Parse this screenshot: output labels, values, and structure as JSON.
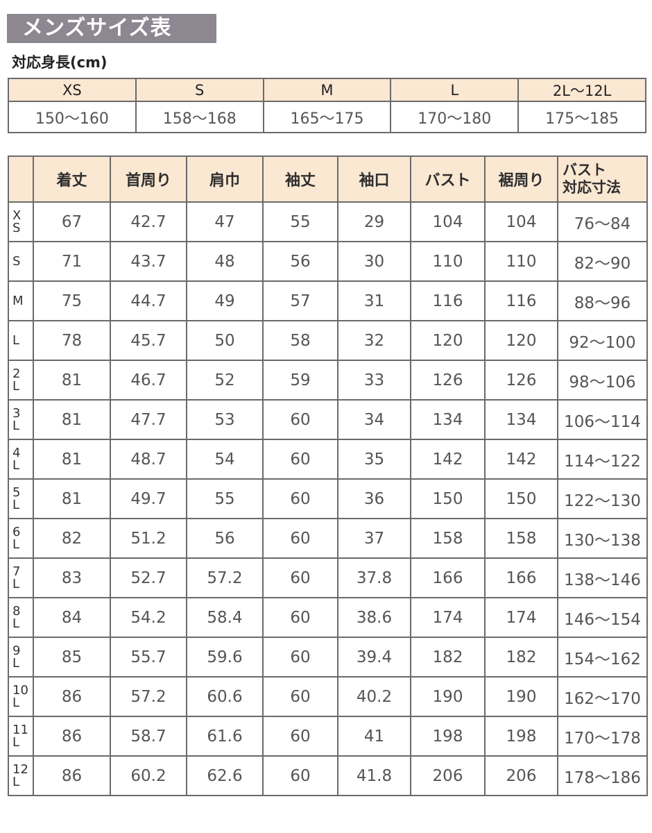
{
  "title": "メンズサイズ表",
  "height_section": {
    "label": "対応身長(cm)",
    "sizes": [
      "XS",
      "S",
      "M",
      "L",
      "2L〜12L"
    ],
    "heights": [
      "150〜160",
      "158〜168",
      "165〜175",
      "170〜180",
      "175〜185"
    ]
  },
  "size_table": {
    "headers": [
      "",
      "着丈",
      "首周り",
      "肩巾",
      "袖丈",
      "袖口",
      "バスト",
      "裾周り",
      "バスト\n対応寸法"
    ],
    "header_last_line1": "バスト",
    "header_last_line2": "対応寸法",
    "rows": [
      [
        "XS",
        "67",
        "42.7",
        "47",
        "55",
        "29",
        "104",
        "104",
        "76〜84"
      ],
      [
        "S",
        "71",
        "43.7",
        "48",
        "56",
        "30",
        "110",
        "110",
        "82〜90"
      ],
      [
        "M",
        "75",
        "44.7",
        "49",
        "57",
        "31",
        "116",
        "116",
        "88〜96"
      ],
      [
        "L",
        "78",
        "45.7",
        "50",
        "58",
        "32",
        "120",
        "120",
        "92〜100"
      ],
      [
        "2L",
        "81",
        "46.7",
        "52",
        "59",
        "33",
        "126",
        "126",
        "98〜106"
      ],
      [
        "3L",
        "81",
        "47.7",
        "53",
        "60",
        "34",
        "134",
        "134",
        "106〜114"
      ],
      [
        "4L",
        "81",
        "48.7",
        "54",
        "60",
        "35",
        "142",
        "142",
        "114〜122"
      ],
      [
        "5L",
        "81",
        "49.7",
        "55",
        "60",
        "36",
        "150",
        "150",
        "122〜130"
      ],
      [
        "6L",
        "82",
        "51.2",
        "56",
        "60",
        "37",
        "158",
        "158",
        "130〜138"
      ],
      [
        "7L",
        "83",
        "52.7",
        "57.2",
        "60",
        "37.8",
        "166",
        "166",
        "138〜146"
      ],
      [
        "8L",
        "84",
        "54.2",
        "58.4",
        "60",
        "38.6",
        "174",
        "174",
        "146〜154"
      ],
      [
        "9L",
        "85",
        "55.7",
        "59.6",
        "60",
        "39.4",
        "182",
        "182",
        "154〜162"
      ],
      [
        "10L",
        "86",
        "57.2",
        "60.6",
        "60",
        "40.2",
        "190",
        "190",
        "162〜170"
      ],
      [
        "11L",
        "86",
        "58.7",
        "61.6",
        "60",
        "41",
        "198",
        "198",
        "170〜178"
      ],
      [
        "12L",
        "86",
        "60.2",
        "62.6",
        "60",
        "41.8",
        "206",
        "206",
        "178〜186"
      ]
    ]
  },
  "colors": {
    "header_bg": "#fbe8d3",
    "title_bg": "#8c8791",
    "border": "#6a6a6a"
  }
}
